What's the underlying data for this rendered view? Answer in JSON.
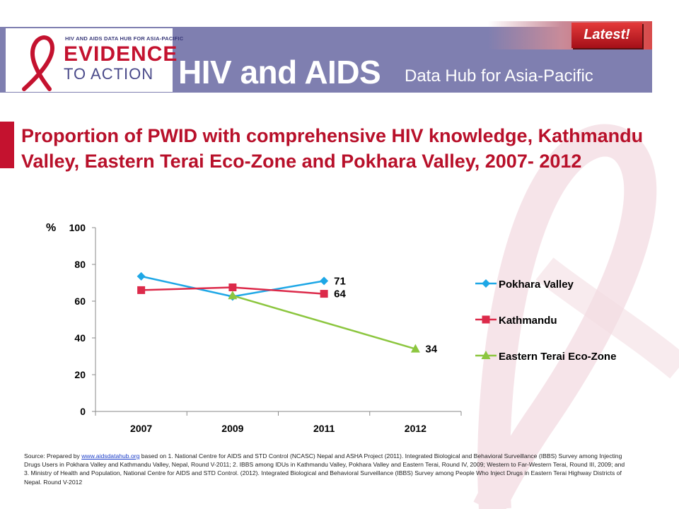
{
  "header": {
    "logo_small_text": "HIV AND AIDS DATA HUB FOR ASIA-PACIFIC",
    "logo_line1": "EVIDENCE",
    "logo_line2": "TO ACTION",
    "title": "HIV and AIDS",
    "subtitle": "Data Hub for Asia-Pacific",
    "badge": "Latest!"
  },
  "slide_title": "Proportion of PWID with comprehensive  HIV knowledge, Kathmandu Valley, Eastern Terai Eco-Zone and Pokhara Valley, 2007- 2012",
  "colors": {
    "banner": "#7f7fb0",
    "accent_red": "#c4122f",
    "pokhara": "#1ea7e6",
    "kathmandu": "#dc2a4a",
    "eastern_terai": "#8cc63f"
  },
  "chart_data": {
    "type": "line",
    "ylabel": "%",
    "ylim": [
      0,
      100
    ],
    "yticks": [
      "0",
      "20",
      "40",
      "60",
      "80",
      "100"
    ],
    "categories": [
      "2007",
      "2009",
      "2011",
      "2012"
    ],
    "legend_position": "right",
    "grid": false,
    "series": [
      {
        "name": "Pokhara Valley",
        "values": [
          73.5,
          62.5,
          71,
          null
        ],
        "end_label": "71",
        "marker": "diamond",
        "color": "#1ea7e6"
      },
      {
        "name": "Kathmandu",
        "values": [
          66,
          67.5,
          64,
          null
        ],
        "end_label": "64",
        "marker": "square",
        "color": "#dc2a4a"
      },
      {
        "name": "Eastern Terai Eco-Zone",
        "values": [
          null,
          63,
          null,
          34
        ],
        "end_label": "34",
        "marker": "triangle",
        "color": "#8cc63f"
      }
    ]
  },
  "source": {
    "prefix": "Source: Prepared by ",
    "link": "www.aidsdatahub.org",
    "text": " based on 1. National Centre for AIDS and STD Control (NCASC) Nepal and ASHA Project (2011).  Integrated Biological and Behavioral Surveillance (IBBS) Survey among Injecting Drugs Users in Pokhara Valley and Kathmandu Valley, Nepal, Round V-2011; 2. IBBS among IDUs in Kathmandu Valley, Pokhara Valley and Eastern Terai, Round IV, 2009; Western to Far-Western Terai, Round III, 2009; and 3. Ministry of Health and Population, National Centre for AIDS and STD Control. (2012). Integrated Biological and Behavioral Surveillance (IBBS) Survey among People Who Inject Drugs in Eastern Terai Highway Districts of Nepal. Round V-2012"
  }
}
